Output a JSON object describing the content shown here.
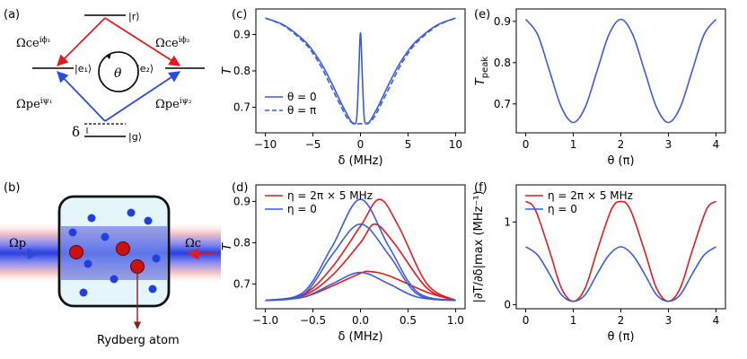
{
  "panels": {
    "a": {
      "label": "(a)",
      "levels": {
        "r": "|r⟩",
        "e1": "|e₁⟩",
        "e2": "|e₂⟩",
        "g": "|g⟩"
      },
      "couplings": {
        "c1": "Ωce",
        "c1_sup": "iϕ₁",
        "c2": "Ωce",
        "c2_sup": "iϕ₂",
        "p1": "Ωpe",
        "p1_sup": "iψ₁",
        "p2": "Ωpe",
        "p2_sup": "iψ₂"
      },
      "loop_symbol": "θ",
      "detuning_symbol": "δ",
      "colors": {
        "coupling": "#e41a1c",
        "probe": "#2b4cdb"
      }
    },
    "b": {
      "label": "(b)",
      "probe_label": "Ωp",
      "coupling_label": "Ωc",
      "atom_label": "Rydberg atom",
      "colors": {
        "cell": "#cfeef8",
        "beam": "#2b3fe0",
        "beam_edge": "#f6c3c3",
        "rydberg": "#cc1111",
        "ground": "#1f3fe0"
      }
    },
    "c": {
      "label": "(c)"
    },
    "d": {
      "label": "(d)"
    },
    "e": {
      "label": "(e)"
    },
    "f": {
      "label": "(f)"
    }
  },
  "chart_data": [
    {
      "id": "c",
      "type": "line",
      "xlabel": "δ (MHz)",
      "ylabel": "T",
      "xlim": [
        -11,
        11
      ],
      "ylim": [
        0.63,
        0.97
      ],
      "xticks": [
        -10,
        -5,
        0,
        5,
        10
      ],
      "yticks": [
        0.7,
        0.8,
        0.9
      ],
      "grid": false,
      "legend": "bottom-left",
      "series": [
        {
          "name": "θ = 0",
          "style": "solid",
          "color": "#3b5bdb",
          "x": [
            -10,
            -8,
            -6,
            -5,
            -4,
            -3,
            -2,
            -1.5,
            -1,
            -0.7,
            -0.4,
            -0.2,
            0,
            0.2,
            0.4,
            0.7,
            1,
            1.5,
            2,
            3,
            4,
            5,
            6,
            8,
            10
          ],
          "y": [
            0.945,
            0.925,
            0.885,
            0.855,
            0.815,
            0.765,
            0.71,
            0.685,
            0.662,
            0.655,
            0.67,
            0.78,
            0.905,
            0.78,
            0.67,
            0.655,
            0.662,
            0.685,
            0.71,
            0.765,
            0.815,
            0.855,
            0.885,
            0.925,
            0.945
          ]
        },
        {
          "name": "θ = π",
          "style": "dashed",
          "color": "#3b5bdb",
          "x": [
            -10,
            -8,
            -6,
            -5,
            -4,
            -3,
            -2,
            -1.5,
            -1,
            -0.5,
            0,
            0.5,
            1,
            1.5,
            2,
            3,
            4,
            5,
            6,
            8,
            10
          ],
          "y": [
            0.945,
            0.923,
            0.88,
            0.848,
            0.805,
            0.752,
            0.7,
            0.675,
            0.66,
            0.655,
            0.655,
            0.655,
            0.66,
            0.675,
            0.7,
            0.752,
            0.805,
            0.848,
            0.88,
            0.923,
            0.945
          ]
        }
      ]
    },
    {
      "id": "d",
      "type": "line",
      "xlabel": "δ (MHz)",
      "ylabel": "T",
      "xlim": [
        -1.1,
        1.1
      ],
      "ylim": [
        0.64,
        0.94
      ],
      "xticks": [
        -1.0,
        -0.5,
        0.0,
        0.5,
        1.0
      ],
      "xtick_labels": [
        "−1.0",
        "−0.5",
        "0.0",
        "0.5",
        "1.0"
      ],
      "yticks": [
        0.7,
        0.8,
        0.9
      ],
      "grid": false,
      "legend": "top-left",
      "series": [
        {
          "name": "η = 2π × 5 MHz",
          "color": "#e41a1c",
          "group": "red1",
          "x": [
            -1,
            -0.6,
            -0.3,
            0,
            0.2,
            0.4,
            0.7,
            1
          ],
          "y": [
            0.66,
            0.675,
            0.74,
            0.84,
            0.905,
            0.84,
            0.7,
            0.66
          ]
        },
        {
          "name": "",
          "color": "#e41a1c",
          "group": "red2",
          "x": [
            -1,
            -0.6,
            -0.3,
            0,
            0.15,
            0.35,
            0.7,
            1
          ],
          "y": [
            0.66,
            0.672,
            0.72,
            0.8,
            0.845,
            0.8,
            0.69,
            0.66
          ]
        },
        {
          "name": "",
          "color": "#e41a1c",
          "group": "red3",
          "x": [
            -1,
            -0.6,
            -0.3,
            0,
            0.1,
            0.3,
            0.7,
            1
          ],
          "y": [
            0.66,
            0.668,
            0.695,
            0.726,
            0.73,
            0.72,
            0.68,
            0.66
          ]
        },
        {
          "name": "η = 0",
          "color": "#3b5bdb",
          "group": "blue1",
          "x": [
            -1,
            -0.6,
            -0.3,
            0,
            0.3,
            0.6,
            1
          ],
          "y": [
            0.66,
            0.68,
            0.79,
            0.905,
            0.79,
            0.68,
            0.66
          ]
        },
        {
          "name": "",
          "color": "#3b5bdb",
          "group": "blue2",
          "x": [
            -1,
            -0.6,
            -0.3,
            0,
            0.3,
            0.6,
            1
          ],
          "y": [
            0.66,
            0.675,
            0.77,
            0.845,
            0.77,
            0.675,
            0.66
          ]
        },
        {
          "name": "",
          "color": "#3b5bdb",
          "group": "blue3",
          "x": [
            -1,
            -0.6,
            -0.3,
            0,
            0.3,
            0.6,
            1
          ],
          "y": [
            0.66,
            0.668,
            0.7,
            0.728,
            0.7,
            0.668,
            0.66
          ]
        }
      ]
    },
    {
      "id": "e",
      "type": "line",
      "xlabel": "θ (π)",
      "ylabel": "Tpeak",
      "xlim": [
        -0.2,
        4.2
      ],
      "ylim": [
        0.63,
        0.93
      ],
      "xticks": [
        0,
        1,
        2,
        3,
        4
      ],
      "yticks": [
        0.7,
        0.8,
        0.9
      ],
      "grid": false,
      "series": [
        {
          "name": "",
          "color": "#3b5bdb",
          "x": [
            0,
            0.25,
            0.5,
            0.75,
            1,
            1.25,
            1.5,
            1.75,
            2,
            2.25,
            2.5,
            2.75,
            3,
            3.25,
            3.5,
            3.75,
            4
          ],
          "y": [
            0.905,
            0.868,
            0.78,
            0.692,
            0.655,
            0.692,
            0.78,
            0.868,
            0.905,
            0.868,
            0.78,
            0.692,
            0.655,
            0.692,
            0.78,
            0.868,
            0.905
          ]
        }
      ]
    },
    {
      "id": "f",
      "type": "line",
      "xlabel": "θ (π)",
      "ylabel": "|∂T/∂δ|max (MHz⁻¹)",
      "xlim": [
        -0.2,
        4.2
      ],
      "ylim": [
        -0.05,
        1.45
      ],
      "xticks": [
        0,
        1,
        2,
        3,
        4
      ],
      "yticks": [
        0,
        1
      ],
      "grid": false,
      "legend": "top-left",
      "series": [
        {
          "name": "η = 2π × 5 MHz",
          "color": "#e41a1c",
          "x": [
            0,
            0.2,
            0.5,
            0.75,
            1,
            1.25,
            1.5,
            1.8,
            2,
            2.2,
            2.5,
            2.75,
            3,
            3.25,
            3.5,
            3.8,
            4
          ],
          "y": [
            1.25,
            1.15,
            0.65,
            0.2,
            0.04,
            0.2,
            0.65,
            1.15,
            1.25,
            1.15,
            0.65,
            0.2,
            0.04,
            0.2,
            0.65,
            1.15,
            1.25
          ]
        },
        {
          "name": "η = 0",
          "color": "#3b5bdb",
          "x": [
            0,
            0.25,
            0.5,
            0.75,
            1,
            1.25,
            1.5,
            1.75,
            2,
            2.25,
            2.5,
            2.75,
            3,
            3.25,
            3.5,
            3.75,
            4
          ],
          "y": [
            0.7,
            0.6,
            0.37,
            0.12,
            0.04,
            0.12,
            0.37,
            0.6,
            0.7,
            0.6,
            0.37,
            0.12,
            0.04,
            0.12,
            0.37,
            0.6,
            0.7
          ]
        }
      ]
    }
  ]
}
